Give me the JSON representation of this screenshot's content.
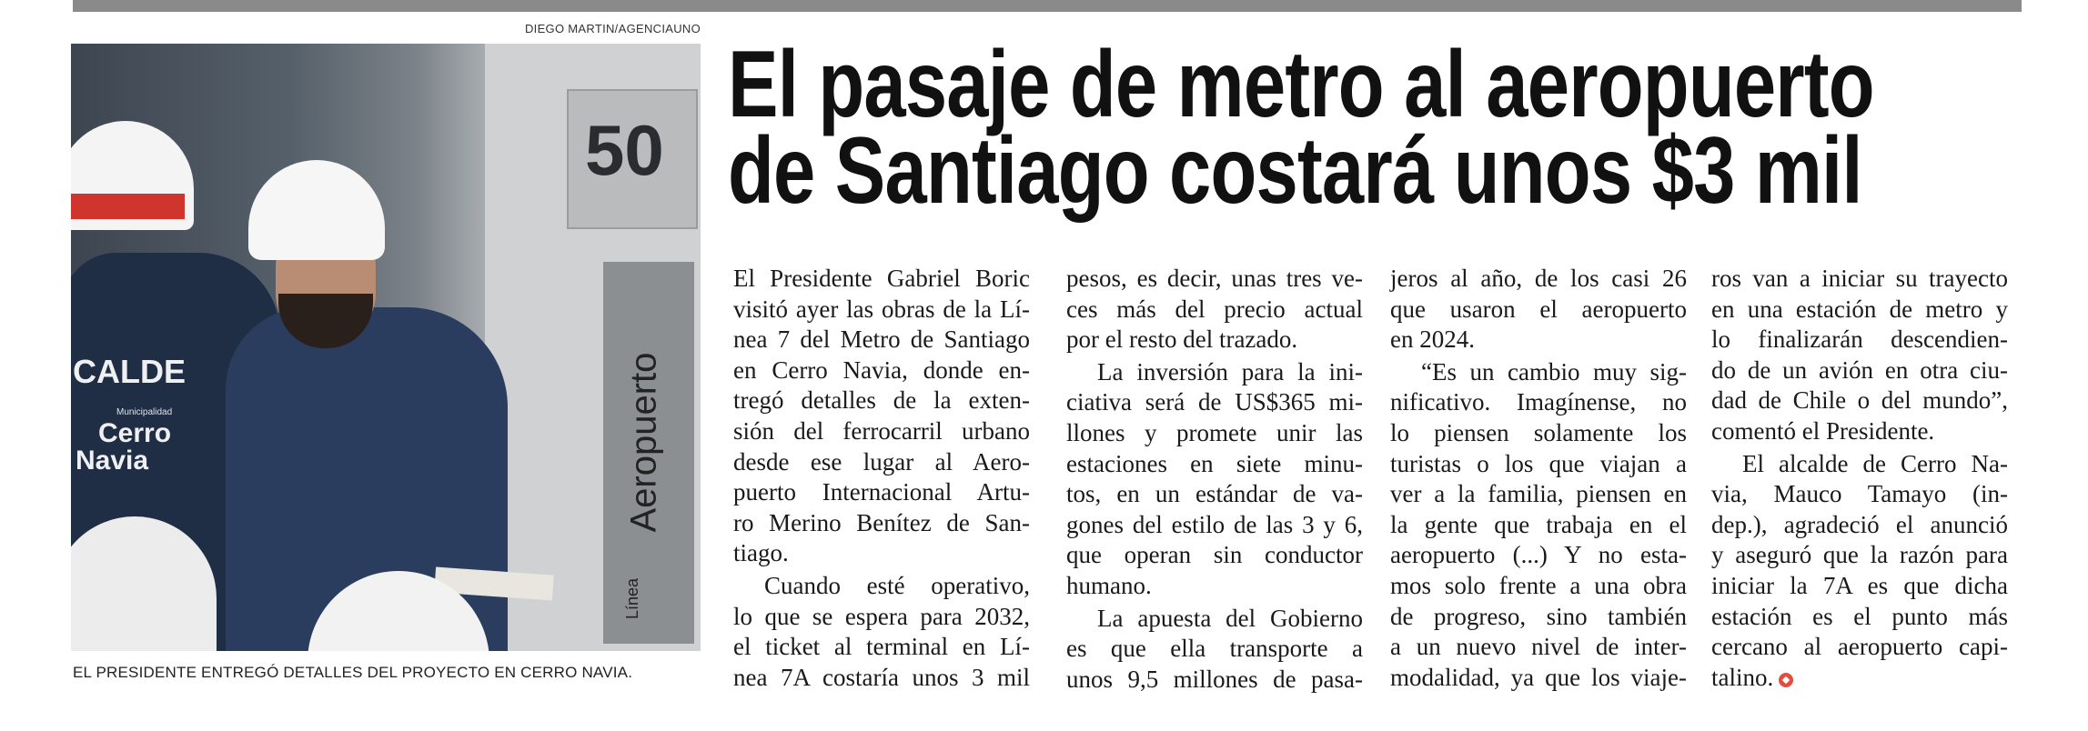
{
  "credit": "DIEGO MARTIN/AGENCIAUNO",
  "headline": {
    "lines": [
      "El pasaje de metro al aeropuerto",
      "de Santiago costará unos $3 mil"
    ]
  },
  "photo": {
    "vest_text": "CALDE",
    "vest_logo_small": "Municipalidad",
    "vest_logo": [
      "Cerro",
      "Navia"
    ],
    "sign_number": "50",
    "sign_vertical": "Aeropuerto",
    "sign_line": "Línea"
  },
  "caption": "EL PRESIDENTE ENTREGÓ DETALLES DEL PROYECTO EN CERRO NAVIA.",
  "columns": [
    {
      "paragraphs": [
        {
          "indent": false,
          "lines": [
            "El Presidente Gabriel Boric",
            "visitó ayer las obras de la Lí-",
            "nea 7 del Metro de Santiago",
            "en Cerro Navia, donde en-",
            "tregó detalles de la exten-",
            "sión del ferrocarril urbano",
            "desde ese lugar al Aero-",
            "puerto Internacional Artu-",
            "ro Merino Benítez de San-",
            "tiago."
          ]
        },
        {
          "indent": true,
          "lines": [
            "Cuando esté operativo,",
            "lo que se espera para 2032,",
            "el ticket al terminal en Lí-",
            "nea 7A costaría unos 3 mil"
          ],
          "continues": true
        }
      ]
    },
    {
      "paragraphs": [
        {
          "indent": false,
          "lines": [
            "pesos, es decir, unas tres ve-",
            "ces más del precio actual",
            "por el resto del trazado."
          ]
        },
        {
          "indent": true,
          "lines": [
            "La inversión para la ini-",
            "ciativa será de US$365 mi-",
            "llones y promete unir las",
            "estaciones en siete minu-",
            "tos, en un estándar de va-",
            "gones del estilo de las 3 y 6,",
            "que operan sin conductor",
            "humano."
          ]
        },
        {
          "indent": true,
          "lines": [
            "La apuesta del Gobierno",
            "es que ella transporte a",
            "unos 9,5 millones de pasa-"
          ],
          "continues": true
        }
      ]
    },
    {
      "paragraphs": [
        {
          "indent": false,
          "lines": [
            "jeros al año, de los casi 26",
            "que usaron el aeropuerto",
            "en 2024."
          ]
        },
        {
          "indent": true,
          "lines": [
            "“Es un cambio muy sig-",
            "nificativo. Imagínense, no",
            "lo piensen solamente los",
            "turistas o los que viajan a",
            "ver a la familia, piensen en",
            "la gente que trabaja en el",
            "aeropuerto (...) Y no esta-",
            "mos solo frente a una obra",
            "de progreso, sino también",
            "a un nuevo nivel de inter-",
            "modalidad, ya que los viaje-"
          ],
          "continues": true
        }
      ]
    },
    {
      "paragraphs": [
        {
          "indent": false,
          "lines": [
            "ros van a iniciar su trayecto",
            "en una estación de metro y",
            "lo finalizarán descendien-",
            "do de un avión en otra ciu-",
            "dad de Chile o del mundo”,",
            "comentó el Presidente."
          ]
        },
        {
          "indent": true,
          "lines": [
            "El alcalde de Cerro Na-",
            "via, Mauco Tamayo (in-",
            "dep.), agradeció el anunció",
            "y aseguró que la razón para",
            "iniciar la 7A es que dicha",
            "estación es el punto más",
            "cercano al aeropuerto capi-",
            "talino."
          ],
          "endmark": true
        }
      ]
    }
  ],
  "colors": {
    "endmark": "#e0503f",
    "topbar": "#8a8a8a"
  }
}
